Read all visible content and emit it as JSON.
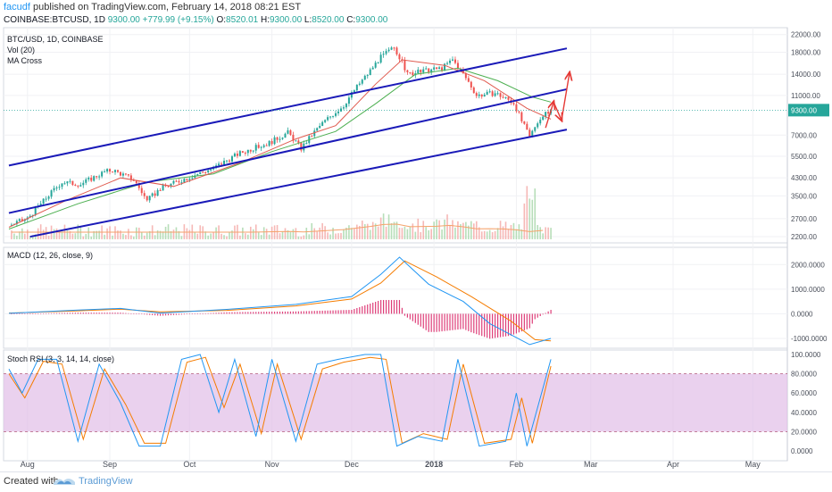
{
  "header": {
    "user": "facudf",
    "published_text": "published on TradingView.com, February 14, 2018 08:21 EST",
    "symbol": "COINBASE:BTCUSD, 1D",
    "last": "9300.00",
    "change": "+779.99 (+9.15%)",
    "o_label": "O:",
    "o": "8520.01",
    "h_label": "H:",
    "h": "9300.00",
    "l_label": "L:",
    "l": "8520.00",
    "c_label": "C:",
    "c": "9300.00"
  },
  "panes": {
    "price": {
      "title": "BTC/USD, 1D, COINBASE",
      "vol": "Vol (20)",
      "ma": "MA Cross"
    },
    "macd": {
      "title": "MACD (12, 26, close, 9)"
    },
    "rsi": {
      "title": "Stoch RSI (3, 3, 14, 14, close)"
    }
  },
  "footer": {
    "created_with": "Created with",
    "brand": "TradingView"
  },
  "colors": {
    "up": "#26a69a",
    "down": "#ef5350",
    "channel": "#1a1ab8",
    "ma_fast": "#e05a4f",
    "ma_slow": "#4caf50",
    "macd": "#2196f3",
    "signal": "#f57c00",
    "hist": "#d81b60",
    "rsi_k": "#2196f3",
    "rsi_d": "#f57c00",
    "rsi_band": "#e1bee7",
    "last_price_bg": "#26a69a"
  },
  "chart_data": [
    {
      "type": "candlestick",
      "title": "BTC/USD, 1D, COINBASE",
      "y_scale": "log",
      "y_ticks": [
        2200,
        2700,
        3500,
        4300,
        5500,
        7000,
        9300,
        11000,
        14000,
        18000,
        22000
      ],
      "y_tick_labels": [
        "2200.00",
        "2700.00",
        "3500.00",
        "4300.00",
        "5500.00",
        "7000.00",
        "9300.00",
        "11000.00",
        "14000.00",
        "18000.00",
        "22000.00"
      ],
      "last_price_label": "9300.00",
      "x_tick_labels": [
        "Aug",
        "Sep",
        "Oct",
        "Nov",
        "Dec",
        "2018",
        "Feb",
        "Mar",
        "Apr",
        "May"
      ],
      "close_path": [
        [
          "2017-07-25",
          2500
        ],
        [
          "2017-08-01",
          2700
        ],
        [
          "2017-08-07",
          3300
        ],
        [
          "2017-08-14",
          4100
        ],
        [
          "2017-08-21",
          4000
        ],
        [
          "2017-08-30",
          4600
        ],
        [
          "2017-09-02",
          4700
        ],
        [
          "2017-09-10",
          4200
        ],
        [
          "2017-09-15",
          3300
        ],
        [
          "2017-09-20",
          3800
        ],
        [
          "2017-09-30",
          4300
        ],
        [
          "2017-10-10",
          4800
        ],
        [
          "2017-10-20",
          5700
        ],
        [
          "2017-10-31",
          6400
        ],
        [
          "2017-11-07",
          7200
        ],
        [
          "2017-11-12",
          6000
        ],
        [
          "2017-11-20",
          8000
        ],
        [
          "2017-11-28",
          9800
        ],
        [
          "2017-12-07",
          14000
        ],
        [
          "2017-12-12",
          17000
        ],
        [
          "2017-12-17",
          19000
        ],
        [
          "2017-12-22",
          14000
        ],
        [
          "2017-12-28",
          14500
        ],
        [
          "2018-01-04",
          15000
        ],
        [
          "2018-01-08",
          16500
        ],
        [
          "2018-01-12",
          14000
        ],
        [
          "2018-01-17",
          11000
        ],
        [
          "2018-01-24",
          11300
        ],
        [
          "2018-01-31",
          10100
        ],
        [
          "2018-02-03",
          8200
        ],
        [
          "2018-02-06",
          6800
        ],
        [
          "2018-02-09",
          8200
        ],
        [
          "2018-02-14",
          9300
        ]
      ],
      "ma_fast_path": [
        [
          "2017-07-25",
          2450
        ],
        [
          "2017-08-15",
          3300
        ],
        [
          "2017-09-05",
          4300
        ],
        [
          "2017-09-25",
          3900
        ],
        [
          "2017-10-20",
          5100
        ],
        [
          "2017-11-10",
          6700
        ],
        [
          "2017-11-25",
          7800
        ],
        [
          "2017-12-10",
          12500
        ],
        [
          "2017-12-20",
          16500
        ],
        [
          "2018-01-05",
          15500
        ],
        [
          "2018-01-20",
          13000
        ],
        [
          "2018-02-05",
          9500
        ],
        [
          "2018-02-14",
          8400
        ]
      ],
      "ma_slow_path": [
        [
          "2017-07-25",
          2400
        ],
        [
          "2017-08-20",
          3200
        ],
        [
          "2017-09-15",
          4100
        ],
        [
          "2017-10-10",
          4500
        ],
        [
          "2017-11-01",
          5800
        ],
        [
          "2017-11-25",
          7300
        ],
        [
          "2017-12-10",
          10000
        ],
        [
          "2017-12-25",
          14000
        ],
        [
          "2018-01-10",
          15000
        ],
        [
          "2018-01-25",
          13000
        ],
        [
          "2018-02-07",
          10800
        ],
        [
          "2018-02-14",
          10200
        ]
      ],
      "channel_lines": [
        {
          "from": [
            "2017-07-25",
            4950
          ],
          "to": [
            "2018-02-20",
            18800
          ]
        },
        {
          "from": [
            "2017-07-25",
            2880
          ],
          "to": [
            "2018-02-20",
            11800
          ]
        },
        {
          "from": [
            "2017-08-02",
            2200
          ],
          "to": [
            "2018-02-20",
            7450
          ]
        }
      ],
      "arrows": [
        {
          "from": [
            "2018-02-12",
            7600
          ],
          "to": [
            "2018-02-15",
            10200
          ]
        },
        {
          "from": [
            "2018-02-15",
            10200
          ],
          "to": [
            "2018-02-18",
            8300
          ]
        },
        {
          "from": [
            "2018-02-18",
            8300
          ],
          "to": [
            "2018-02-21",
            14200
          ]
        }
      ],
      "volume_note": "volume bars shown on bottom of price pane"
    },
    {
      "type": "line",
      "title": "MACD (12, 26, close, 9)",
      "y_ticks": [
        -1000,
        0,
        1000,
        2000
      ],
      "y_tick_labels": [
        "-1000.0000",
        "0.0000",
        "1000.0000",
        "2000.0000"
      ],
      "series": [
        {
          "values": [
            [
              "2017-07-25",
              20
            ],
            [
              "2017-08-20",
              150
            ],
            [
              "2017-09-05",
              220
            ],
            [
              "2017-09-20",
              30
            ],
            [
              "2017-10-15",
              180
            ],
            [
              "2017-11-10",
              380
            ],
            [
              "2017-12-01",
              700
            ],
            [
              "2017-12-12",
              1600
            ],
            [
              "2017-12-19",
              2300
            ],
            [
              "2017-12-30",
              1200
            ],
            [
              "2018-01-12",
              500
            ],
            [
              "2018-01-22",
              -400
            ],
            [
              "2018-02-06",
              -1250
            ],
            [
              "2018-02-14",
              -1000
            ]
          ]
        },
        {
          "values": [
            [
              "2017-07-25",
              30
            ],
            [
              "2017-08-20",
              120
            ],
            [
              "2017-09-05",
              190
            ],
            [
              "2017-09-20",
              80
            ],
            [
              "2017-10-15",
              140
            ],
            [
              "2017-11-10",
              320
            ],
            [
              "2017-12-01",
              600
            ],
            [
              "2017-12-12",
              1250
            ],
            [
              "2017-12-21",
              2150
            ],
            [
              "2018-01-02",
              1500
            ],
            [
              "2018-01-15",
              700
            ],
            [
              "2018-01-30",
              -300
            ],
            [
              "2018-02-08",
              -1050
            ],
            [
              "2018-02-14",
              -1100
            ]
          ]
        }
      ]
    },
    {
      "type": "line",
      "title": "Stoch RSI (3, 3, 14, 14, close)",
      "ylim": [
        0,
        100
      ],
      "bands": [
        20,
        80
      ],
      "y_ticks": [
        0,
        20,
        40,
        60,
        80,
        100
      ],
      "y_tick_labels": [
        "0.0000",
        "20.0000",
        "40.0000",
        "60.0000",
        "80.0000",
        "100.0000"
      ],
      "series": [
        {
          "values": [
            [
              "2017-07-25",
              85
            ],
            [
              "2017-07-30",
              60
            ],
            [
              "2017-08-05",
              95
            ],
            [
              "2017-08-12",
              95
            ],
            [
              "2017-08-20",
              10
            ],
            [
              "2017-08-28",
              90
            ],
            [
              "2017-09-05",
              50
            ],
            [
              "2017-09-12",
              5
            ],
            [
              "2017-09-20",
              5
            ],
            [
              "2017-09-28",
              95
            ],
            [
              "2017-10-05",
              100
            ],
            [
              "2017-10-12",
              40
            ],
            [
              "2017-10-18",
              95
            ],
            [
              "2017-10-26",
              15
            ],
            [
              "2017-11-01",
              95
            ],
            [
              "2017-11-10",
              10
            ],
            [
              "2017-11-18",
              90
            ],
            [
              "2017-11-26",
              95
            ],
            [
              "2017-12-06",
              100
            ],
            [
              "2017-12-12",
              100
            ],
            [
              "2017-12-18",
              5
            ],
            [
              "2017-12-26",
              15
            ],
            [
              "2018-01-04",
              10
            ],
            [
              "2018-01-10",
              95
            ],
            [
              "2018-01-18",
              5
            ],
            [
              "2018-01-28",
              10
            ],
            [
              "2018-02-01",
              60
            ],
            [
              "2018-02-05",
              5
            ],
            [
              "2018-02-14",
              95
            ]
          ]
        },
        {
          "values": [
            [
              "2017-07-25",
              80
            ],
            [
              "2017-07-31",
              55
            ],
            [
              "2017-08-07",
              93
            ],
            [
              "2017-08-14",
              90
            ],
            [
              "2017-08-22",
              12
            ],
            [
              "2017-08-30",
              85
            ],
            [
              "2017-09-07",
              48
            ],
            [
              "2017-09-14",
              8
            ],
            [
              "2017-09-22",
              8
            ],
            [
              "2017-09-30",
              92
            ],
            [
              "2017-10-07",
              97
            ],
            [
              "2017-10-14",
              45
            ],
            [
              "2017-10-20",
              90
            ],
            [
              "2017-10-28",
              18
            ],
            [
              "2017-11-03",
              90
            ],
            [
              "2017-11-12",
              12
            ],
            [
              "2017-11-20",
              85
            ],
            [
              "2017-11-28",
              92
            ],
            [
              "2017-12-08",
              97
            ],
            [
              "2017-12-14",
              95
            ],
            [
              "2017-12-20",
              8
            ],
            [
              "2017-12-28",
              18
            ],
            [
              "2018-01-06",
              12
            ],
            [
              "2018-01-12",
              90
            ],
            [
              "2018-01-20",
              8
            ],
            [
              "2018-01-30",
              12
            ],
            [
              "2018-02-03",
              55
            ],
            [
              "2018-02-07",
              8
            ],
            [
              "2018-02-14",
              88
            ]
          ]
        }
      ]
    }
  ]
}
